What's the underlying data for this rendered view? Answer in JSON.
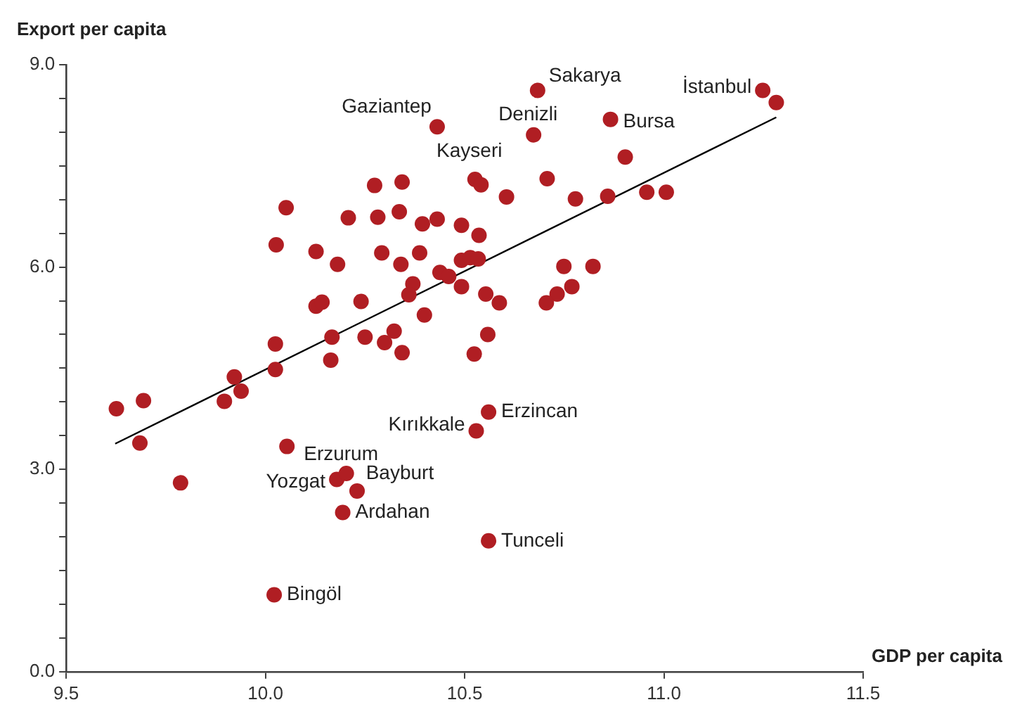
{
  "chart_data": {
    "type": "scatter",
    "xlabel": "GDP per capita",
    "ylabel": "Export per capita",
    "xlim": [
      9.5,
      11.5
    ],
    "xticks": [
      9.5,
      {
        "value": 10,
        "label": "10.0"
      },
      10.5,
      {
        "value": 11,
        "label": "11.0"
      },
      11.5
    ],
    "ylim": [
      0,
      9
    ],
    "yticks": [
      {
        "value": 0,
        "label": "0.0"
      },
      {
        "value": 0.5,
        "label": null
      },
      {
        "value": 1,
        "label": null
      },
      {
        "value": 1.5,
        "label": null
      },
      {
        "value": 2,
        "label": null
      },
      {
        "value": 2.5,
        "label": null
      },
      {
        "value": 3,
        "label": "3.0"
      },
      {
        "value": 3.5,
        "label": null
      },
      {
        "value": 4,
        "label": null
      },
      {
        "value": 4.5,
        "label": null
      },
      {
        "value": 5,
        "label": null
      },
      {
        "value": 5.5,
        "label": null
      },
      {
        "value": 6,
        "label": "6.0"
      },
      {
        "value": 6.5,
        "label": null
      },
      {
        "value": 7,
        "label": null
      },
      {
        "value": 7.5,
        "label": null
      },
      {
        "value": 8,
        "label": null
      },
      {
        "value": 8.5,
        "label": null
      },
      {
        "value": 9,
        "label": "9.0"
      }
    ],
    "grid": false,
    "legend": false,
    "marker": "circle",
    "series": [
      {
        "type": "scatter",
        "color": "#b01e23",
        "x": [
          10.431,
          10.274,
          10.343,
          10.526,
          10.541,
          10.052,
          10.208,
          10.282,
          10.336,
          10.394,
          10.431,
          10.492,
          10.536,
          10.027,
          10.127,
          10.181,
          10.292,
          10.34,
          10.387,
          10.492,
          10.514,
          10.534,
          10.438,
          10.46,
          10.492,
          10.37,
          10.36,
          10.553,
          10.127,
          10.142,
          10.24,
          10.399,
          10.025,
          10.167,
          10.25,
          10.323,
          10.299,
          10.343,
          10.524,
          10.558,
          10.164,
          10.025,
          9.922,
          10.683,
          11.248,
          11.282,
          10.673,
          10.866,
          10.903,
          10.707,
          10.605,
          10.778,
          10.859,
          10.957,
          11.006,
          10.587,
          10.749,
          10.822,
          10.769,
          10.732,
          10.705,
          9.626,
          9.694,
          9.685,
          9.787,
          9.897,
          9.939,
          10.56,
          10.529,
          10.054,
          10.179,
          10.203,
          10.23,
          10.194,
          10.56,
          10.022
        ],
        "values": [
          8.08,
          7.21,
          7.26,
          7.3,
          7.22,
          6.88,
          6.73,
          6.74,
          6.82,
          6.64,
          6.71,
          6.62,
          6.47,
          6.33,
          6.23,
          6.04,
          6.21,
          6.04,
          6.21,
          6.1,
          6.14,
          6.12,
          5.92,
          5.86,
          5.71,
          5.75,
          5.59,
          5.6,
          5.42,
          5.48,
          5.49,
          5.29,
          4.86,
          4.96,
          4.96,
          5.05,
          4.88,
          4.73,
          4.71,
          5.0,
          4.62,
          4.48,
          4.37,
          8.62,
          8.62,
          8.44,
          7.96,
          8.19,
          7.63,
          7.31,
          7.04,
          7.01,
          7.05,
          7.11,
          7.11,
          5.47,
          6.01,
          6.01,
          5.71,
          5.6,
          5.47,
          3.9,
          4.02,
          3.39,
          2.8,
          4.01,
          4.16,
          3.85,
          3.57,
          3.34,
          2.85,
          2.94,
          2.68,
          2.36,
          1.94,
          1.14
        ]
      },
      {
        "type": "line",
        "color": "#000000",
        "marker": "none",
        "line_style": "solid",
        "x": [
          9.623,
          11.282
        ],
        "values": [
          3.38,
          8.22
        ]
      }
    ],
    "annotations": [
      {
        "text": "Gaziantep",
        "x": 10.431,
        "y": 8.08
      },
      {
        "text": "Sakarya",
        "x": 10.683,
        "y": 8.62
      },
      {
        "text": "İstanbul",
        "x": 11.248,
        "y": 8.62
      },
      {
        "text": "Denizli",
        "x": 10.673,
        "y": 7.96
      },
      {
        "text": "Bursa",
        "x": 10.866,
        "y": 8.19
      },
      {
        "text": "Kayseri",
        "x": 10.526,
        "y": 7.3
      },
      {
        "text": "Erzincan",
        "x": 10.56,
        "y": 3.85
      },
      {
        "text": "Kırıkkale",
        "x": 10.529,
        "y": 3.57
      },
      {
        "text": "Erzurum",
        "x": 10.054,
        "y": 3.34
      },
      {
        "text": "Yozgat",
        "x": 10.179,
        "y": 2.85
      },
      {
        "text": "Bayburt",
        "x": 10.203,
        "y": 2.94
      },
      {
        "text": "Ardahan",
        "x": 10.194,
        "y": 2.36
      },
      {
        "text": "Tunceli",
        "x": 10.56,
        "y": 1.94
      },
      {
        "text": "Bingöl",
        "x": 10.022,
        "y": 1.14
      }
    ]
  }
}
